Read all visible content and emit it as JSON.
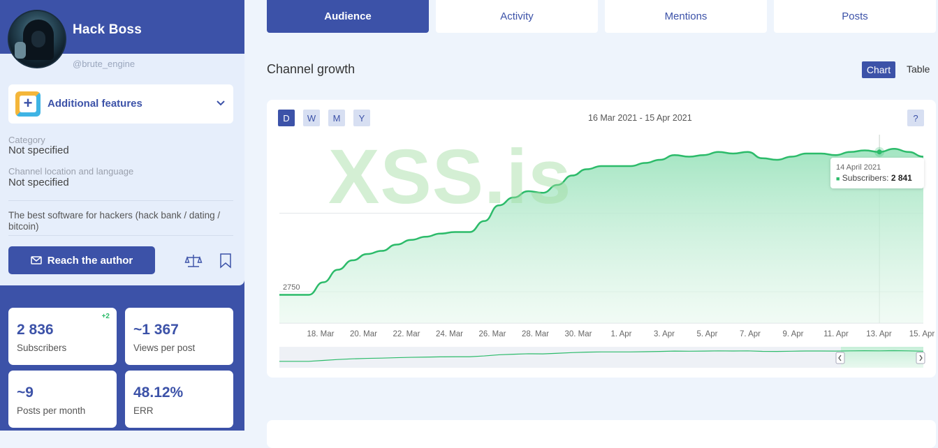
{
  "profile": {
    "name": "Hack Boss",
    "handle": "@brute_engine",
    "features_label": "Additional features",
    "category_label": "Category",
    "category_value": "Not specified",
    "location_label": "Channel location and language",
    "location_value": "Not specified",
    "description": "The best software for hackers (hack bank / dating / bitcoin)",
    "reach_button": "Reach the author"
  },
  "stats": [
    {
      "value": "2 836",
      "label": "Subscribers",
      "delta": "+2"
    },
    {
      "value": "~1 367",
      "label": "Views per post"
    },
    {
      "value": "~9",
      "label": "Posts per month"
    },
    {
      "value": "48.12%",
      "label": "ERR"
    }
  ],
  "tabs": [
    {
      "label": "Audience",
      "active": true
    },
    {
      "label": "Activity"
    },
    {
      "label": "Mentions"
    },
    {
      "label": "Posts"
    }
  ],
  "section": {
    "title": "Channel growth",
    "view_chart": "Chart",
    "view_table": "Table"
  },
  "chart_controls": {
    "periods": [
      "D",
      "W",
      "M",
      "Y"
    ],
    "active_period": "D",
    "date_range": "16 Mar 2021 - 15 Apr 2021",
    "help": "?"
  },
  "watermark": "XSS.is",
  "tooltip": {
    "date": "14 April 2021",
    "series": "Subscribers:",
    "value": "2 841"
  },
  "colors": {
    "primary": "#3c52a8",
    "line": "#2cbb6a",
    "fill": "#b9ecd1",
    "delta": "#2cbb6a"
  },
  "chart_data": {
    "type": "area",
    "series": [
      {
        "name": "Subscribers",
        "values": [
          2748,
          2748,
          2748,
          2756,
          2764,
          2770,
          2774,
          2776,
          2780,
          2783,
          2785,
          2787,
          2788,
          2788,
          2795,
          2805,
          2810,
          2814,
          2813,
          2818,
          2824,
          2828,
          2830,
          2830,
          2830,
          2832,
          2834,
          2837,
          2836,
          2837,
          2839,
          2838,
          2839,
          2835,
          2834,
          2836,
          2838,
          2838,
          2837,
          2839,
          2840,
          2839,
          2841,
          2839,
          2836
        ]
      }
    ],
    "x_tick_labels": [
      "18. Mar",
      "20. Mar",
      "22. Mar",
      "24. Mar",
      "26. Mar",
      "28. Mar",
      "30. Mar",
      "1. Apr",
      "3. Apr",
      "5. Apr",
      "7. Apr",
      "9. Apr",
      "11. Apr",
      "13. Apr",
      "15. Apr"
    ],
    "y_tick_labels": [
      "2750"
    ],
    "ylim": [
      2730,
      2850
    ],
    "grid": true
  }
}
